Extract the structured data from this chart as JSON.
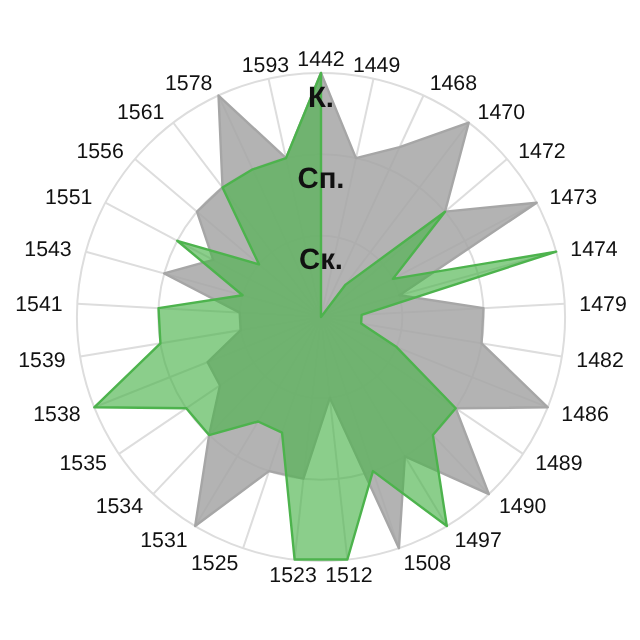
{
  "chart_data": {
    "type": "radar",
    "categories": [
      "1442",
      "1449",
      "1468",
      "1470",
      "1472",
      "1473",
      "1474",
      "1479",
      "1482",
      "1486",
      "1489",
      "1490",
      "1497",
      "1508",
      "1512",
      "1523",
      "1525",
      "1531",
      "1534",
      "1535",
      "1538",
      "1539",
      "1541",
      "1543",
      "1551",
      "1556",
      "1561",
      "1578",
      "1593"
    ],
    "series": [
      {
        "color": "#a6a6a6",
        "values": [
          3,
          2,
          2.3,
          3,
          2,
          3,
          1,
          2,
          2,
          3,
          2,
          3,
          2,
          3,
          1,
          2,
          2,
          3,
          2,
          1.5,
          1.5,
          1,
          1,
          2,
          1.5,
          2,
          2,
          3,
          2
        ]
      },
      {
        "color": "#4db34d",
        "values": [
          3,
          0,
          0,
          0.5,
          2,
          1,
          3,
          0.5,
          0.5,
          1,
          2,
          2,
          3,
          2,
          3,
          3,
          1.5,
          1.5,
          2,
          2,
          3,
          2,
          2,
          1,
          2,
          1,
          2,
          2,
          2
        ]
      }
    ],
    "ylim": [
      0,
      3
    ],
    "yticks": [
      {
        "value": 1,
        "label": "Ск."
      },
      {
        "value": 2,
        "label": "Сп."
      },
      {
        "value": 3,
        "label": "К."
      }
    ],
    "grid": true
  }
}
